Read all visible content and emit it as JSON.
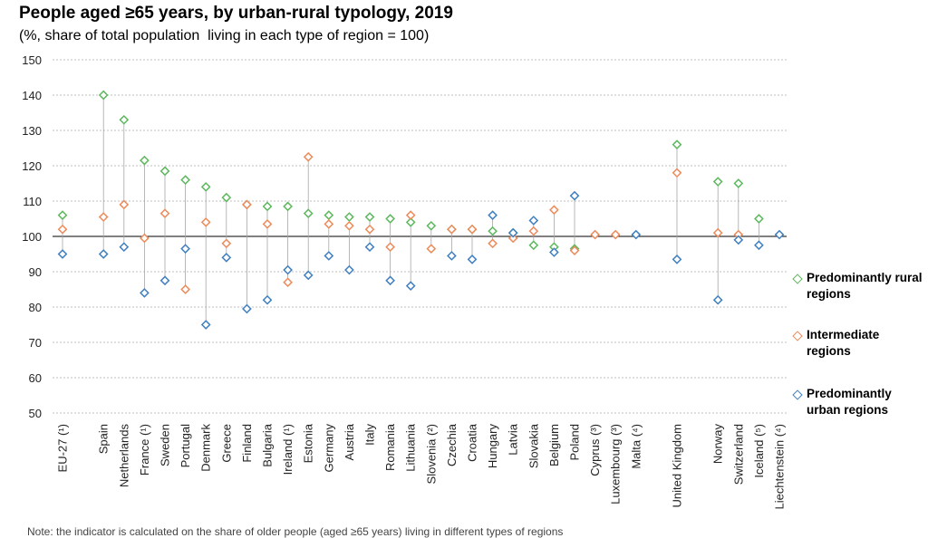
{
  "header": {
    "title": "People aged ≥65 years, by urban-rural typology, 2019",
    "subtitle": "(%, share of total population  living in each type of region = 100)"
  },
  "note": "Note: the indicator is calculated on the share of older people (aged ≥65 years) living in different types of regions",
  "colors": {
    "rural": "#5cb85c",
    "intermediate": "#ec8a5a",
    "urban": "#3f7fbf",
    "grid": "#bfbfbf",
    "connector": "#a6a6a6"
  },
  "chart_data": {
    "type": "scatter",
    "title": "People aged ≥65 years, by urban-rural typology, 2019",
    "subtitle": "(%, share of total population  living in each type of region = 100)",
    "ylim": [
      50,
      150
    ],
    "yticks": [
      50,
      60,
      70,
      80,
      90,
      100,
      110,
      120,
      130,
      140,
      150
    ],
    "reference_line": 100,
    "legend_position": "right",
    "categories": [
      "EU-27 (¹)",
      "",
      "Spain",
      "Netherlands",
      "France (¹)",
      "Sweden",
      "Portugal",
      "Denmark",
      "Greece",
      "Finland",
      "Bulgaria",
      "Ireland (¹)",
      "Estonia",
      "Germany",
      "Austria",
      "Italy",
      "Romania",
      "Lithuania",
      "Slovenia (²)",
      "Czechia",
      "Croatia",
      "Hungary",
      "Latvia",
      "Slovakia",
      "Belgium",
      "Poland",
      "Cyprus (³)",
      "Luxembourg (³)",
      "Malta (⁴)",
      "",
      "United Kingdom",
      "",
      "Norway",
      "Switzerland",
      "Iceland (⁵)",
      "Liechtenstein (⁴)"
    ],
    "series": [
      {
        "name": "Predominantly rural regions",
        "values": [
          106,
          null,
          140,
          133,
          121.5,
          118.5,
          116,
          114,
          111,
          109,
          108.5,
          108.5,
          106.5,
          106,
          105.5,
          105.5,
          105,
          104,
          103,
          102,
          102,
          101.5,
          101,
          97.5,
          97,
          96.5,
          null,
          null,
          null,
          null,
          126,
          null,
          115.5,
          115,
          105,
          null
        ]
      },
      {
        "name": "Intermediate regions",
        "values": [
          102,
          null,
          105.5,
          109,
          99.5,
          106.5,
          85,
          104,
          98,
          109,
          103.5,
          87,
          122.5,
          103.5,
          103,
          102,
          97,
          106,
          96.5,
          102,
          102,
          98,
          99.5,
          101.5,
          107.5,
          96,
          100.5,
          100.5,
          null,
          null,
          118,
          null,
          101,
          100.5,
          null,
          null
        ]
      },
      {
        "name": "Predominantly urban regions",
        "values": [
          95,
          null,
          95,
          97,
          84,
          87.5,
          96.5,
          75,
          94,
          79.5,
          82,
          90.5,
          89,
          94.5,
          90.5,
          97,
          87.5,
          86,
          null,
          94.5,
          93.5,
          106,
          101,
          104.5,
          95.5,
          111.5,
          null,
          null,
          100.5,
          null,
          93.5,
          null,
          82,
          99,
          97.5,
          100.5
        ]
      }
    ]
  },
  "legend": [
    {
      "label": "Predominantly rural regions",
      "color_key": "rural"
    },
    {
      "label": "Intermediate regions",
      "color_key": "intermediate"
    },
    {
      "label": "Predominantly urban regions",
      "color_key": "urban"
    }
  ]
}
